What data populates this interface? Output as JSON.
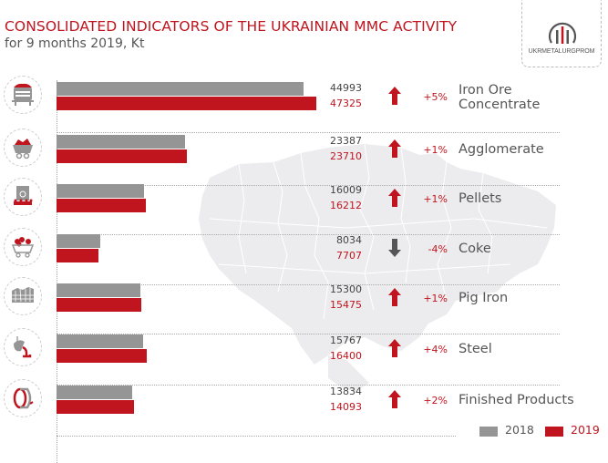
{
  "header": {
    "title": "CONSOLIDATED INDICATORS OF THE UKRAINIAN MMC ACTIVITY",
    "subtitle": "for 9 months 2019, Kt",
    "logo_text": "UKRMETALURGPROM"
  },
  "colors": {
    "accent": "#c0141e",
    "gray_2018": "#959595",
    "down_arrow": "#555555",
    "map": "#ececee"
  },
  "chart_data": {
    "type": "bar",
    "orientation": "horizontal",
    "title": "CONSOLIDATED INDICATORS OF THE UKRAINIAN MMC ACTIVITY",
    "subtitle": "for 9 months 2019, Kt",
    "unit": "Kt",
    "categories": [
      "Iron Ore Concentrate",
      "Agglomerate",
      "Pellets",
      "Coke",
      "Pig Iron",
      "Steel",
      "Finished Products"
    ],
    "category_lines": [
      [
        "Iron Ore",
        "Concentrate"
      ],
      [
        "Agglomerate"
      ],
      [
        "Pellets"
      ],
      [
        "Coke"
      ],
      [
        "Pig Iron"
      ],
      [
        "Steel"
      ],
      [
        "Finished Products"
      ]
    ],
    "icons": [
      "ore-wagon-icon",
      "mine-cart-icon",
      "pellet-press-icon",
      "coke-cart-icon",
      "pig-iron-icon",
      "steel-ladle-icon",
      "steel-coil-icon"
    ],
    "series": [
      {
        "name": "2018",
        "color": "#959595",
        "values": [
          44993,
          23387,
          16009,
          8034,
          15300,
          15767,
          13834
        ],
        "labels": [
          "44993",
          "23387",
          "16009",
          "8034",
          "15300",
          "15767",
          "13834"
        ]
      },
      {
        "name": "2019",
        "color": "#c0141e",
        "values": [
          47325,
          23710,
          16212,
          7707,
          15475,
          16400,
          14093
        ],
        "labels": [
          "47325",
          "23710",
          "16212",
          "7707",
          "15475",
          "16400",
          "14093"
        ]
      }
    ],
    "change": [
      "+5%",
      "+1%",
      "+1%",
      "-4%",
      "+1%",
      "+4%",
      "+2%"
    ],
    "direction": [
      "up",
      "up",
      "up",
      "down",
      "up",
      "up",
      "up"
    ],
    "xlim": [
      0,
      48000
    ],
    "grid": false,
    "legend": {
      "position": "bottom-right",
      "entries": [
        "2018",
        "2019"
      ]
    }
  }
}
